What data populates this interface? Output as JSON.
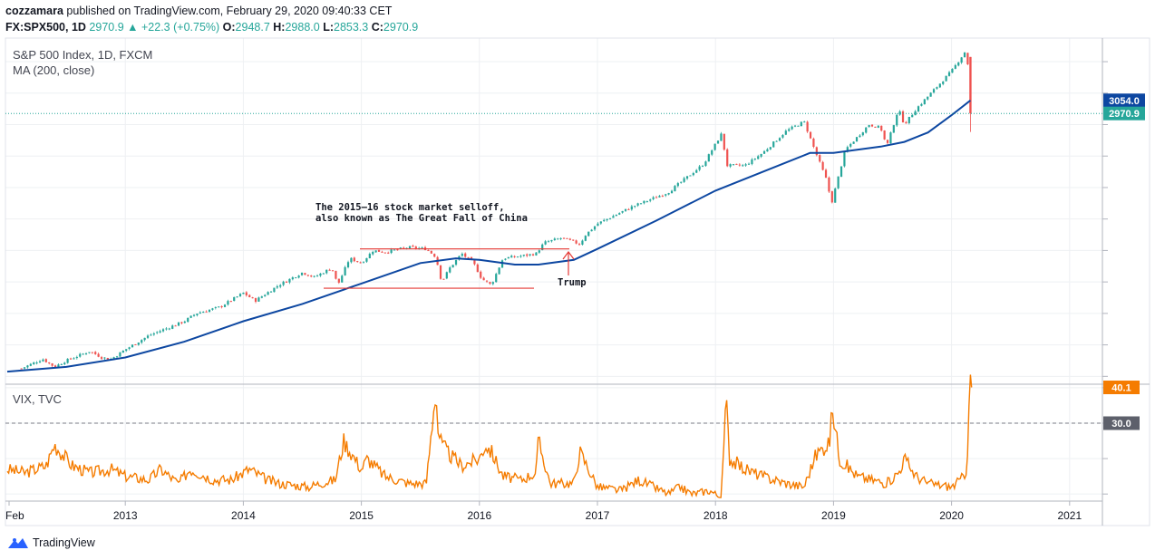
{
  "header": {
    "publisher": "cozzamara",
    "published_text": " published on TradingView.com, February 29, 2020 09:40:33 CET",
    "symbol": "FX:SPX500, 1D",
    "last": "2970.9",
    "change_arrow": "▲",
    "change": "+22.3 (+0.75%)",
    "o_label": "O:",
    "o_val": "2948.7",
    "h_label": "H:",
    "h_val": "2988.0",
    "l_label": "L:",
    "l_val": "2853.3",
    "c_label": "C:",
    "c_val": "2970.9"
  },
  "footer": {
    "brand": "TradingView"
  },
  "colors": {
    "up": "#26a69a",
    "down": "#ef5350",
    "ma": "#0d47a1",
    "vix": "#f57c00",
    "annotation": "#e53935",
    "grid": "#eef0f3",
    "axis": "#b2b5be"
  },
  "chart_data": [
    {
      "type": "candlestick",
      "title": "S&P 500 Index, 1D, FXCM",
      "indicator": "MA (200, close)",
      "x_ticks": [
        "Feb",
        "2013",
        "2014",
        "2015",
        "2016",
        "2017",
        "2018",
        "2019",
        "2020",
        "2021"
      ],
      "price_labels": [
        {
          "text": "3054.0",
          "value": 3054.0,
          "color": "#0d47a1"
        },
        {
          "text": "2970.9",
          "value": 2970.9,
          "color": "#26a69a"
        }
      ],
      "ylim": [
        1250,
        3450
      ],
      "close_series": {
        "x": [
          2012.12,
          2012.3,
          2012.4,
          2012.5,
          2012.7,
          2012.8,
          2012.88,
          2013.0,
          2013.2,
          2013.4,
          2013.5,
          2013.6,
          2013.8,
          2014.0,
          2014.1,
          2014.3,
          2014.5,
          2014.6,
          2014.75,
          2014.8,
          2014.9,
          2015.0,
          2015.1,
          2015.2,
          2015.4,
          2015.55,
          2015.63,
          2015.68,
          2015.75,
          2015.85,
          2015.95,
          2016.02,
          2016.1,
          2016.2,
          2016.4,
          2016.48,
          2016.55,
          2016.7,
          2016.85,
          2016.9,
          2017.0,
          2017.3,
          2017.6,
          2017.9,
          2018.05,
          2018.1,
          2018.25,
          2018.4,
          2018.6,
          2018.75,
          2018.85,
          2018.95,
          2018.98,
          2019.1,
          2019.3,
          2019.4,
          2019.45,
          2019.55,
          2019.6,
          2019.7,
          2019.8,
          2020.0,
          2020.13,
          2020.16
        ],
        "y": [
          1350,
          1410,
          1360,
          1400,
          1460,
          1420,
          1410,
          1470,
          1560,
          1620,
          1650,
          1700,
          1740,
          1830,
          1780,
          1880,
          1960,
          1930,
          1990,
          1880,
          2050,
          2020,
          2100,
          2090,
          2120,
          2110,
          2060,
          1900,
          1990,
          2080,
          2020,
          1920,
          1880,
          2050,
          2070,
          2080,
          2150,
          2180,
          2140,
          2200,
          2270,
          2380,
          2470,
          2650,
          2840,
          2640,
          2640,
          2720,
          2860,
          2920,
          2720,
          2530,
          2390,
          2740,
          2900,
          2880,
          2760,
          3000,
          2900,
          3000,
          3080,
          3240,
          3380,
          2970.9
        ]
      },
      "ma_series": {
        "x": [
          2012.0,
          2012.5,
          2013.0,
          2013.5,
          2014.0,
          2014.5,
          2015.0,
          2015.5,
          2015.8,
          2016.0,
          2016.3,
          2016.5,
          2016.8,
          2017.0,
          2017.5,
          2018.0,
          2018.5,
          2018.8,
          2019.0,
          2019.4,
          2019.6,
          2019.8,
          2020.0,
          2020.16
        ],
        "y": [
          1330,
          1360,
          1420,
          1520,
          1650,
          1760,
          1890,
          2020,
          2050,
          2040,
          2010,
          2010,
          2040,
          2110,
          2290,
          2480,
          2630,
          2720,
          2720,
          2760,
          2790,
          2850,
          2960,
          3054
        ]
      },
      "annotations": [
        {
          "text_lines": [
            "The 2015–16 stock market selloff,",
            "also known as The Great Fall of China"
          ]
        },
        {
          "text": "Trump"
        }
      ],
      "range_lines": [
        2110,
        1860
      ]
    },
    {
      "type": "line",
      "title": "VIX, TVC",
      "ylim": [
        8,
        41
      ],
      "reference_line": {
        "value": 30.0,
        "label": "30.0"
      },
      "last_label": {
        "text": "40.1",
        "value": 40.1
      },
      "series": {
        "x": [
          2012.0,
          2012.15,
          2012.33,
          2012.4,
          2012.55,
          2012.7,
          2012.88,
          2013.0,
          2013.2,
          2013.3,
          2013.45,
          2013.55,
          2013.75,
          2013.9,
          2014.05,
          2014.2,
          2014.3,
          2014.55,
          2014.65,
          2014.78,
          2014.85,
          2015.0,
          2015.05,
          2015.2,
          2015.4,
          2015.55,
          2015.63,
          2015.65,
          2015.68,
          2015.75,
          2015.85,
          2016.0,
          2016.05,
          2016.1,
          2016.2,
          2016.35,
          2016.48,
          2016.5,
          2016.6,
          2016.8,
          2016.85,
          2017.0,
          2017.2,
          2017.35,
          2017.6,
          2017.7,
          2017.8,
          2017.95,
          2018.05,
          2018.09,
          2018.12,
          2018.25,
          2018.4,
          2018.6,
          2018.75,
          2018.85,
          2018.97,
          2018.99,
          2019.05,
          2019.2,
          2019.45,
          2019.55,
          2019.6,
          2019.7,
          2019.8,
          2020.0,
          2020.08,
          2020.13,
          2020.15,
          2020.17
        ],
        "y": [
          17,
          16,
          18,
          24,
          18,
          16,
          17,
          15,
          14,
          17,
          13,
          17,
          14,
          14,
          17,
          14,
          13,
          12,
          13,
          14,
          25,
          17,
          20,
          15,
          13,
          13,
          40,
          28,
          24,
          21,
          18,
          20,
          24,
          22,
          15,
          14,
          16,
          25,
          13,
          13,
          22,
          12,
          11,
          14,
          10,
          12,
          10,
          11,
          9,
          37,
          20,
          17,
          15,
          13,
          12,
          21,
          25,
          35,
          20,
          15,
          13,
          16,
          20,
          15,
          13,
          12,
          14,
          17,
          40.1,
          40.1
        ]
      }
    }
  ]
}
